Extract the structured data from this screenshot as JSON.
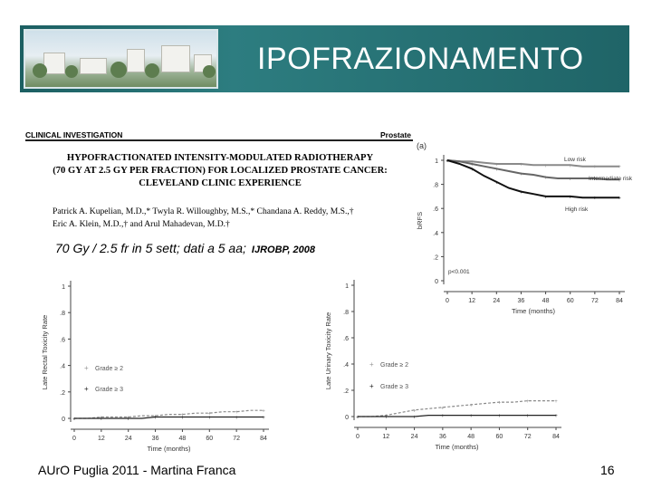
{
  "slide": {
    "title": "IPOFRAZIONAMENTO",
    "caption": "70 Gy / 2.5 fr in 5 sett; dati a 5 aa;",
    "caption_source": "IJROBP, 2008",
    "footer_left": "AUrO Puglia 2011 - Martina Franca",
    "page_number": "16"
  },
  "paper": {
    "category": "CLINICAL INVESTIGATION",
    "specialty": "Prostate",
    "title_lines": [
      "HYPOFRACTIONATED INTENSITY-MODULATED RADIOTHERAPY",
      "(70 GY AT 2.5 GY PER FRACTION) FOR LOCALIZED PROSTATE CANCER:",
      "CLEVELAND CLINIC EXPERIENCE"
    ],
    "author_lines": [
      "Patrick A. Kupelian, M.D.,* Twyla R. Willoughby, M.S.,* Chandana A. Reddy, M.S.,†",
      "Eric A. Klein, M.D.,† and Arul Mahadevan, M.D.†"
    ]
  },
  "chart_data": [
    {
      "type": "line",
      "panel": "(a)",
      "ylabel": "bRFS",
      "xlabel": "Time (months)",
      "x_ticks": [
        0,
        12,
        24,
        36,
        48,
        60,
        72,
        84
      ],
      "y_ticks": [
        "0",
        ".2",
        ".4",
        ".6",
        ".8",
        "1"
      ],
      "xlim": [
        0,
        84
      ],
      "ylim": [
        0,
        1
      ],
      "annotation": "p<0.001",
      "x": [
        0,
        6,
        12,
        18,
        24,
        30,
        36,
        42,
        48,
        54,
        60,
        66,
        72,
        78,
        84
      ],
      "series": [
        {
          "name": "Low risk",
          "values": [
            1.0,
            0.99,
            0.99,
            0.98,
            0.97,
            0.97,
            0.97,
            0.96,
            0.96,
            0.96,
            0.96,
            0.95,
            0.95,
            0.95,
            0.95
          ]
        },
        {
          "name": "Intermediate risk",
          "values": [
            1.0,
            0.99,
            0.97,
            0.95,
            0.93,
            0.91,
            0.89,
            0.88,
            0.86,
            0.85,
            0.85,
            0.85,
            0.85,
            0.84,
            0.84
          ]
        },
        {
          "name": "High risk",
          "values": [
            1.0,
            0.97,
            0.93,
            0.87,
            0.82,
            0.77,
            0.74,
            0.72,
            0.7,
            0.7,
            0.7,
            0.69,
            0.69,
            0.69,
            0.69
          ]
        }
      ]
    },
    {
      "type": "line",
      "ylabel": "Late Rectal Toxicity Rate",
      "xlabel": "Time (months)",
      "x_ticks": [
        0,
        12,
        24,
        36,
        48,
        60,
        72,
        84
      ],
      "y_ticks": [
        "0",
        ".2",
        ".4",
        ".6",
        ".8",
        "1"
      ],
      "xlim": [
        0,
        84
      ],
      "ylim": [
        0,
        1
      ],
      "x": [
        0,
        6,
        12,
        18,
        24,
        30,
        36,
        42,
        48,
        54,
        60,
        66,
        72,
        78,
        84
      ],
      "series": [
        {
          "name": "Grade ≥ 2",
          "values": [
            0.0,
            0.0,
            0.01,
            0.01,
            0.01,
            0.02,
            0.02,
            0.03,
            0.03,
            0.04,
            0.04,
            0.05,
            0.05,
            0.06,
            0.06
          ]
        },
        {
          "name": "Grade ≥ 3",
          "values": [
            0.0,
            0.0,
            0.0,
            0.0,
            0.0,
            0.0,
            0.01,
            0.01,
            0.01,
            0.01,
            0.01,
            0.01,
            0.01,
            0.01,
            0.01
          ]
        }
      ]
    },
    {
      "type": "line",
      "ylabel": "Late Urinary Toxicity Rate",
      "xlabel": "Time (months)",
      "x_ticks": [
        0,
        12,
        24,
        36,
        48,
        60,
        72,
        84
      ],
      "y_ticks": [
        "0",
        ".2",
        ".4",
        ".6",
        ".8",
        "1"
      ],
      "xlim": [
        0,
        84
      ],
      "ylim": [
        0,
        1
      ],
      "x": [
        0,
        6,
        12,
        18,
        24,
        30,
        36,
        42,
        48,
        54,
        60,
        66,
        72,
        78,
        84
      ],
      "series": [
        {
          "name": "Grade ≥ 2",
          "values": [
            0.0,
            0.0,
            0.01,
            0.03,
            0.05,
            0.06,
            0.07,
            0.08,
            0.09,
            0.1,
            0.11,
            0.11,
            0.12,
            0.12,
            0.12
          ]
        },
        {
          "name": "Grade ≥ 3",
          "values": [
            0.0,
            0.0,
            0.0,
            0.0,
            0.0,
            0.01,
            0.01,
            0.01,
            0.01,
            0.01,
            0.01,
            0.01,
            0.01,
            0.01,
            0.01
          ]
        }
      ]
    }
  ]
}
